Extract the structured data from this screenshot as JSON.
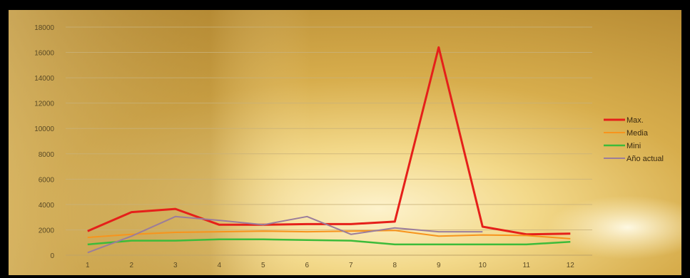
{
  "chart_data": {
    "type": "line",
    "categories": [
      "1",
      "2",
      "3",
      "4",
      "5",
      "6",
      "7",
      "8",
      "9",
      "10",
      "11",
      "12"
    ],
    "ylim": [
      0,
      18000
    ],
    "yticks": [
      0,
      2000,
      4000,
      6000,
      8000,
      10000,
      12000,
      14000,
      16000,
      18000
    ],
    "ytick_labels": [
      "0",
      "2000",
      "4000",
      "6000",
      "8000",
      "10000",
      "12000",
      "14000",
      "16000",
      "18000"
    ],
    "grid": "horizontal",
    "legend_position": "right",
    "series": [
      {
        "name": "Max.",
        "color": "#e5201a",
        "width": 3,
        "values": [
          1900,
          3400,
          3650,
          2400,
          2400,
          2450,
          2450,
          2650,
          16400,
          2250,
          1650,
          1700
        ]
      },
      {
        "name": "Media",
        "color": "#f7941d",
        "width": 2,
        "values": [
          1400,
          1650,
          1800,
          1850,
          1900,
          1850,
          1900,
          1950,
          1500,
          1600,
          1550,
          1300
        ]
      },
      {
        "name": "Mini",
        "color": "#3dbb3a",
        "width": 2.5,
        "values": [
          850,
          1150,
          1150,
          1250,
          1250,
          1200,
          1150,
          850,
          850,
          850,
          850,
          1050
        ]
      },
      {
        "name": "Año actual",
        "color": "#9b7d9b",
        "width": 2,
        "values": [
          200,
          1500,
          3050,
          2750,
          2400,
          3050,
          1650,
          2150,
          1850,
          1850,
          null,
          null
        ]
      }
    ]
  },
  "colors": {
    "frame": "#000000",
    "grid": "#c8b27a"
  }
}
